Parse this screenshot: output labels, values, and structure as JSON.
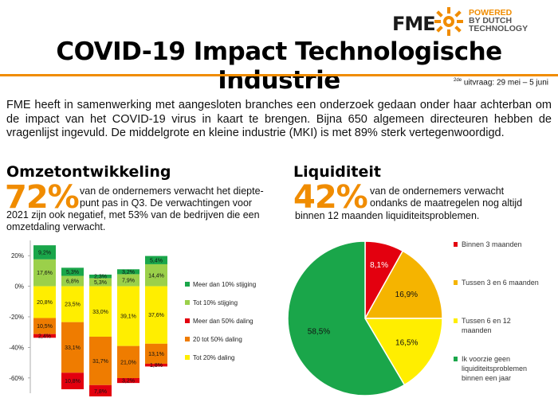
{
  "header": {
    "logo_text": "FME",
    "logo_tagline": [
      "POWERED",
      "BY DUTCH",
      "TECHNOLOGY"
    ],
    "title": "COVID-19 Impact Technologische Industrie",
    "edition_sup": "2de",
    "edition_rest": " uitvraag: 29 mei – 5 juni"
  },
  "intro": "FME heeft in samenwerking met aangesloten branches een onderzoek gedaan onder haar achterban om de impact van het COVID-19 virus in kaart te brengen. Bijna 650 algemeen directeuren hebben de vragenlijst ingevuld. De middelgrote en kleine industrie (MKI) is met 89% sterk vertegenwoordigd.",
  "omzet": {
    "title": "Omzetontwikkeling",
    "pct": "72%",
    "lead_1": "van de ondernemers verwacht het diepte-",
    "lead_2": "punt pas in Q3. De verwachtingen voor",
    "lead_3": "2021 zijn ook negatief, met 53% van de bedrijven die een",
    "lead_4": "omzetdaling verwacht."
  },
  "liquiditeit": {
    "title": "Liquiditeit",
    "pct": "42%",
    "lead_1": "van de ondernemers verwacht",
    "lead_2": "ondanks de maatregelen nog altijd",
    "lead_3": "binnen 12 maanden liquiditeitsproblemen."
  },
  "colors": {
    "accent": "#f08c00",
    "dark_green": "#1aa64a",
    "light_green": "#9bd04a",
    "red": "#e3000f",
    "orange": "#ef7c00",
    "yellow": "#ffee00",
    "pie_orange": "#f5b400"
  },
  "chart_data": [
    {
      "type": "bar",
      "subtype": "diverging-stacked",
      "ylim": [
        -70,
        30
      ],
      "yticks": [
        20,
        0,
        -20,
        -40,
        -60
      ],
      "ytick_labels": [
        "20%",
        "0%",
        "-20%",
        "-40%",
        "-60%"
      ],
      "bar_count": 5,
      "series": [
        {
          "name": "Meer dan 10% stijging",
          "color": "#1aa64a",
          "values": [
            9.2,
            5.3,
            2.3,
            3.2,
            5.4
          ],
          "labels": [
            "9,2%",
            "5,3%",
            "2,3%",
            "3,2%",
            "5,4%"
          ]
        },
        {
          "name": "Tot 10% stijging",
          "color": "#9bd04a",
          "values": [
            17.6,
            6.8,
            5.3,
            7.9,
            14.4
          ],
          "labels": [
            "17,6%",
            "6,8%",
            "5,3%",
            "7,9%",
            "14,4%"
          ]
        },
        {
          "name": "Meer dan 50% daling",
          "color": "#e3000f",
          "values": [
            -2.4,
            -10.8,
            -7.8,
            -3.2,
            -1.8
          ],
          "labels": [
            "2,4%",
            "10,8%",
            "7,8%",
            "3,2%",
            "1,8%"
          ]
        },
        {
          "name": "20 tot 50% daling",
          "color": "#ef7c00",
          "values": [
            -10.5,
            -33.1,
            -31.7,
            -21.0,
            -13.1
          ],
          "labels": [
            "10,5%",
            "33,1%",
            "31,7%",
            "21,0%",
            "13,1%"
          ]
        },
        {
          "name": "Tot 20% daling",
          "color": "#ffee00",
          "values": [
            -20.8,
            -23.5,
            -33.0,
            -39.1,
            -37.6
          ],
          "labels": [
            "20,8%",
            "23,5%",
            "33,0%",
            "39,1%",
            "37,6%"
          ]
        }
      ],
      "legend_position": "right"
    },
    {
      "type": "pie",
      "slices": [
        {
          "name": "Binnen 3 maanden",
          "value": 8.1,
          "label": "8,1%",
          "color": "#e3000f"
        },
        {
          "name": "Tussen 3 en 6 maanden",
          "value": 16.9,
          "label": "16,9%",
          "color": "#f5b400"
        },
        {
          "name": "Tussen 6 en 12 maanden",
          "value": 16.5,
          "label": "16,5%",
          "color": "#ffee00"
        },
        {
          "name": "Ik voorzie geen liquiditeitsproblemen binnen een jaar",
          "value": 58.5,
          "label": "58,5%",
          "color": "#1aa64a"
        }
      ],
      "legend_position": "right"
    }
  ]
}
